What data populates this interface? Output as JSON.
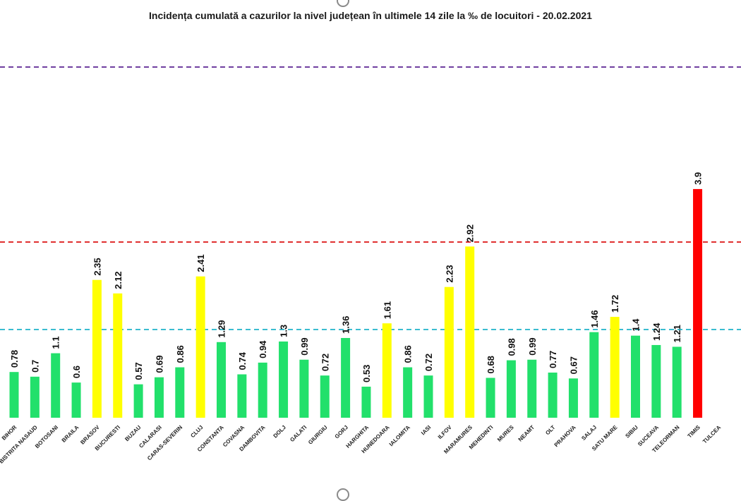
{
  "chart_data": {
    "type": "bar",
    "title": "Incidența cumulată a cazurilor la nivel județean în ultimele 14 zile la ‰ de locuitori - 20.02.2021",
    "xlabel": "",
    "ylabel": "",
    "ylim": [
      0,
      5.5
    ],
    "grid": false,
    "legend": "none",
    "categories": [
      "BIHOR",
      "BISTRITA NASAUD",
      "BOTOSANI",
      "BRAILA",
      "BRASOV",
      "BUCURESTI",
      "BUZAU",
      "CALARASI",
      "CARAS-SEVERIN",
      "CLUJ",
      "CONSTANTA",
      "COVASNA",
      "DAMBOVITA",
      "DOLJ",
      "GALATI",
      "GIURGIU",
      "GORJ",
      "HARGHITA",
      "HUNEDOARA",
      "IALOMITA",
      "IASI",
      "ILFOV",
      "MARAMURES",
      "MEHEDINTI",
      "MURES",
      "NEAMT",
      "OLT",
      "PRAHOVA",
      "SALAJ",
      "SATU MARE",
      "SIBIU",
      "SUCEAVA",
      "TELEORMAN",
      "TIMIS",
      "TULCEA"
    ],
    "values": [
      0.78,
      0.7,
      1.1,
      0.6,
      2.35,
      2.12,
      0.57,
      0.69,
      0.86,
      2.41,
      1.29,
      0.74,
      0.94,
      1.3,
      0.99,
      0.72,
      1.36,
      0.53,
      1.61,
      0.86,
      0.72,
      2.23,
      2.92,
      0.68,
      0.98,
      0.99,
      0.77,
      0.67,
      1.46,
      1.72,
      1.4,
      1.24,
      1.21,
      3.9,
      null
    ],
    "labels": [
      "0.78",
      "0.7",
      "1.1",
      "0.6",
      "2.35",
      "2.12",
      "0.57",
      "0.69",
      "0.86",
      "2.41",
      "1.29",
      "0.74",
      "0.94",
      "1.3",
      "0.99",
      "0.72",
      "1.36",
      "0.53",
      "1.61",
      "0.86",
      "0.72",
      "2.23",
      "2.92",
      "0.68",
      "0.98",
      "0.99",
      "0.77",
      "0.67",
      "1.46",
      "1.72",
      "1.4",
      "1.24",
      "1.21",
      "3.9",
      ""
    ],
    "colors": {
      "green": "#22e06b",
      "yellow": "#ffff00",
      "red": "#ff0000"
    },
    "bar_color_keys": [
      "green",
      "green",
      "green",
      "green",
      "yellow",
      "yellow",
      "green",
      "green",
      "green",
      "yellow",
      "green",
      "green",
      "green",
      "green",
      "green",
      "green",
      "green",
      "green",
      "yellow",
      "green",
      "green",
      "yellow",
      "yellow",
      "green",
      "green",
      "green",
      "green",
      "green",
      "green",
      "yellow",
      "green",
      "green",
      "green",
      "red",
      "green"
    ],
    "thresholds": [
      {
        "value": 1.5,
        "color": "#3bbcd0"
      },
      {
        "value": 3.0,
        "color": "#e03030"
      },
      {
        "value": 6.0,
        "color": "#7040a0"
      }
    ]
  }
}
